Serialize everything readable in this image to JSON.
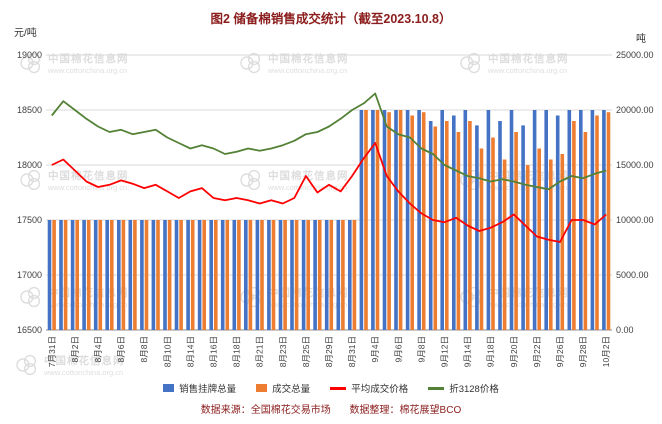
{
  "title": "图2 储备棉销售成交统计（截至2023.10.8）",
  "left_axis_unit": "元/吨",
  "right_axis_unit": "吨",
  "watermark": {
    "line1": "中国棉花信息网",
    "line2": "www.cottonchina.org.cn"
  },
  "footer": {
    "source": "数据来源：全国棉花交易市场",
    "editor": "数据整理：棉花展望BCO"
  },
  "chart_data": {
    "type": "bar+line",
    "title": "图2 储备棉销售成交统计（截至2023.10.8）",
    "label_step": 2,
    "x_labels": [
      "7月31日",
      "8月2日",
      "8月4日",
      "8月6日",
      "8月8日",
      "8月10日",
      "8月14日",
      "8月16日",
      "8月18日",
      "8月21日",
      "8月23日",
      "8月25日",
      "8月29日",
      "8月31日",
      "9月4日",
      "9月6日",
      "9月8日",
      "9月12日",
      "9月14日",
      "9月18日",
      "9月20日",
      "9月22日",
      "9月26日",
      "9月28日",
      "10月2日"
    ],
    "left_axis": {
      "label": "元/吨",
      "min": 16500,
      "max": 19000,
      "step": 500,
      "ticks": [
        "19000",
        "18500",
        "18000",
        "17500",
        "17000",
        "16500"
      ]
    },
    "right_axis": {
      "label": "吨",
      "min": 0,
      "max": 25000,
      "step": 5000,
      "ticks": [
        "25000.00",
        "20000.00",
        "15000.00",
        "10000.00",
        "5000.00",
        "0.00"
      ]
    },
    "grid": true,
    "legend_position": "bottom",
    "series": [
      {
        "name": "销售挂牌总量",
        "type": "bar",
        "axis": "right",
        "color": "#4472C4",
        "values": [
          10000,
          10000,
          10000,
          10000,
          10000,
          10000,
          10000,
          10000,
          10000,
          10000,
          10000,
          10000,
          10000,
          10000,
          10000,
          10000,
          10000,
          10000,
          10000,
          10000,
          10000,
          10000,
          10000,
          10000,
          10000,
          10000,
          10000,
          20000,
          20000,
          20000,
          20000,
          20000,
          20000,
          19000,
          20000,
          19500,
          20000,
          18600,
          20000,
          19000,
          20000,
          18600,
          20000,
          20000,
          19500,
          20000,
          20000,
          20000,
          20000
        ]
      },
      {
        "name": "成交总量",
        "type": "bar",
        "axis": "right",
        "color": "#ED7D31",
        "values": [
          10000,
          10000,
          10000,
          10000,
          10000,
          10000,
          10000,
          10000,
          10000,
          10000,
          10000,
          10000,
          10000,
          10000,
          10000,
          10000,
          10000,
          10000,
          10000,
          10000,
          10000,
          10000,
          10000,
          10000,
          10000,
          10000,
          10000,
          20000,
          20000,
          19800,
          20000,
          19500,
          19800,
          18500,
          19000,
          18000,
          19000,
          16500,
          17500,
          15500,
          18000,
          15000,
          16500,
          15500,
          16000,
          19000,
          18000,
          19500,
          19800
        ]
      },
      {
        "name": "平均成交价格",
        "type": "line",
        "axis": "left",
        "color": "#FF0000",
        "values": [
          18000,
          18050,
          17950,
          17850,
          17800,
          17820,
          17860,
          17830,
          17790,
          17820,
          17760,
          17700,
          17760,
          17790,
          17700,
          17680,
          17700,
          17680,
          17650,
          17680,
          17650,
          17700,
          17900,
          17750,
          17820,
          17760,
          17900,
          18060,
          18200,
          17900,
          17760,
          17650,
          17560,
          17500,
          17480,
          17520,
          17450,
          17400,
          17430,
          17480,
          17550,
          17450,
          17350,
          17320,
          17300,
          17500,
          17500,
          17460,
          17550
        ]
      },
      {
        "name": "折3128价格",
        "type": "line",
        "axis": "left",
        "color": "#538135",
        "values": [
          18450,
          18580,
          18500,
          18420,
          18350,
          18300,
          18320,
          18280,
          18300,
          18320,
          18250,
          18200,
          18150,
          18180,
          18150,
          18100,
          18120,
          18150,
          18130,
          18150,
          18180,
          18220,
          18280,
          18300,
          18350,
          18420,
          18500,
          18560,
          18650,
          18350,
          18280,
          18250,
          18150,
          18100,
          18000,
          17950,
          17900,
          17880,
          17850,
          17870,
          17850,
          17820,
          17800,
          17780,
          17850,
          17900,
          17880,
          17920,
          17950
        ]
      }
    ]
  }
}
